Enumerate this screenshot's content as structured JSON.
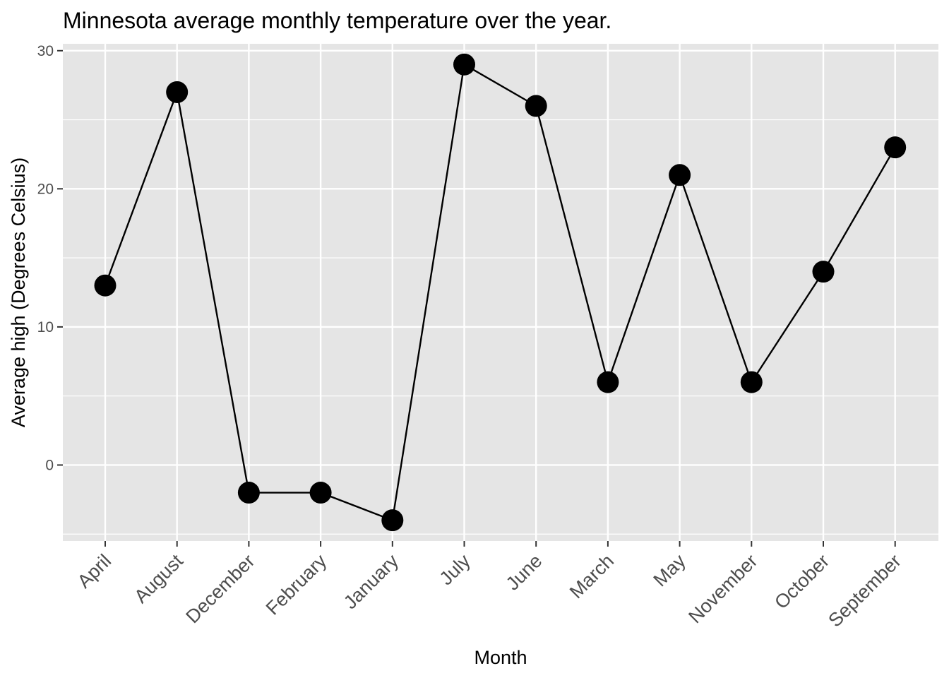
{
  "chart_data": {
    "type": "line",
    "title": "Minnesota average monthly temperature over the year.",
    "xlabel": "Month",
    "ylabel": "Average high (Degrees Celsius)",
    "categories": [
      "April",
      "August",
      "December",
      "February",
      "January",
      "July",
      "June",
      "March",
      "May",
      "November",
      "October",
      "September"
    ],
    "values": [
      13,
      27,
      -2,
      -2,
      -4,
      29,
      26,
      6,
      21,
      6,
      14,
      23
    ],
    "ylim": [
      -5.5,
      30.5
    ],
    "yticks": [
      0,
      10,
      20,
      30
    ],
    "markers": true,
    "grid": true,
    "legend": "none",
    "colors": {
      "panel_background": "#e5e5e5",
      "grid": "#ffffff",
      "series": "#000000",
      "tick": "#4d4d4d"
    }
  }
}
